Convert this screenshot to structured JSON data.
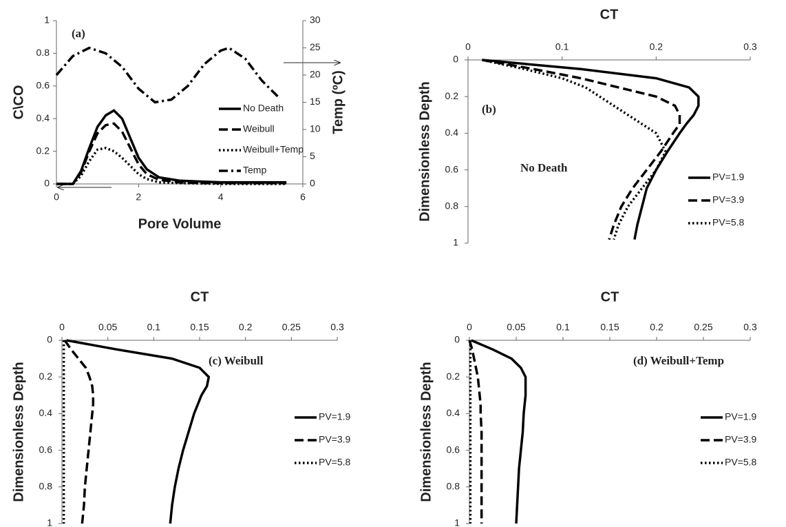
{
  "chart_data": [
    {
      "type": "line",
      "x_label": "Pore Volume",
      "y_label": "C\\CO",
      "y2_label": "Temp (ºC)",
      "annotations": [
        "(a)"
      ],
      "xlim": [
        0,
        6
      ],
      "xticks": [
        0,
        2,
        4,
        6
      ],
      "ylim": [
        0,
        1
      ],
      "yticks": [
        0,
        0.2,
        0.4,
        0.6,
        0.8,
        1
      ],
      "y2lim": [
        0,
        30
      ],
      "y2ticks": [
        0,
        5,
        10,
        15,
        20,
        25,
        30
      ],
      "series": [
        {
          "name": "No Death",
          "color": "#000000",
          "style": "solid",
          "x": [
            0,
            0.4,
            0.6,
            0.8,
            1,
            1.2,
            1.4,
            1.6,
            1.8,
            2,
            2.2,
            2.5,
            3,
            3.5,
            4,
            4.5,
            5,
            5.6
          ],
          "values": [
            0,
            0,
            0.08,
            0.22,
            0.35,
            0.42,
            0.45,
            0.4,
            0.28,
            0.16,
            0.09,
            0.04,
            0.02,
            0.015,
            0.01,
            0.01,
            0.01,
            0.01
          ]
        },
        {
          "name": "Weibull",
          "color": "#000000",
          "style": "dashed",
          "x": [
            0,
            0.4,
            0.6,
            0.8,
            1,
            1.2,
            1.4,
            1.6,
            1.8,
            2,
            2.2,
            2.5,
            3,
            3.5,
            4,
            4.5,
            5,
            5.6
          ],
          "values": [
            0,
            0,
            0.07,
            0.2,
            0.31,
            0.36,
            0.37,
            0.32,
            0.22,
            0.12,
            0.06,
            0.025,
            0.01,
            0.005,
            0.005,
            0.005,
            0.005,
            0.005
          ]
        },
        {
          "name": "Weibull+Temp",
          "color": "#000000",
          "style": "dotted",
          "x": [
            0,
            0.4,
            0.6,
            0.8,
            1,
            1.2,
            1.4,
            1.6,
            1.8,
            2,
            2.2,
            2.5,
            3,
            3.5,
            4,
            4.5,
            5,
            5.6
          ],
          "values": [
            0,
            0,
            0.05,
            0.14,
            0.21,
            0.22,
            0.2,
            0.16,
            0.11,
            0.06,
            0.03,
            0.01,
            0.005,
            0.003,
            0,
            0,
            0,
            0
          ]
        },
        {
          "name": "Temp",
          "color": "#000000",
          "style": "dashdot",
          "axis": "y2",
          "x": [
            0,
            0.4,
            0.8,
            1.2,
            1.6,
            2,
            2.4,
            2.8,
            3.2,
            3.6,
            4,
            4.2,
            4.6,
            5,
            5.4
          ],
          "values": [
            20,
            23.5,
            25,
            24,
            21.5,
            17.5,
            15,
            15.5,
            18,
            22,
            24.5,
            25,
            23,
            19,
            16
          ]
        }
      ]
    },
    {
      "type": "depth-profile",
      "x_label": "CT",
      "y_label": "Dimensionless Depth",
      "annotations": [
        "(b)",
        "No Death"
      ],
      "xaxis_position": "top",
      "xlim": [
        0,
        0.3
      ],
      "xticks": [
        0,
        0.1,
        0.2,
        0.3
      ],
      "ylim": [
        1,
        0
      ],
      "yticks": [
        0,
        0.2,
        0.4,
        0.6,
        0.8,
        1
      ],
      "depths": [
        0,
        0.05,
        0.1,
        0.15,
        0.2,
        0.25,
        0.3,
        0.35,
        0.4,
        0.5,
        0.6,
        0.7,
        0.8,
        0.9,
        0.98
      ],
      "series": [
        {
          "name": "PV=1.9",
          "color": "#000000",
          "style": "solid",
          "values": [
            0.015,
            0.12,
            0.2,
            0.235,
            0.245,
            0.245,
            0.24,
            0.232,
            0.225,
            0.212,
            0.2,
            0.19,
            0.185,
            0.18,
            0.177
          ]
        },
        {
          "name": "PV=3.9",
          "color": "#000000",
          "style": "dashed",
          "values": [
            0.015,
            0.07,
            0.12,
            0.16,
            0.2,
            0.22,
            0.225,
            0.225,
            0.218,
            0.205,
            0.19,
            0.175,
            0.163,
            0.155,
            0.15
          ]
        },
        {
          "name": "PV=5.8",
          "color": "#000000",
          "style": "dotted",
          "values": [
            0.015,
            0.06,
            0.1,
            0.125,
            0.14,
            0.155,
            0.17,
            0.185,
            0.2,
            0.21,
            0.2,
            0.185,
            0.17,
            0.16,
            0.155
          ]
        }
      ]
    },
    {
      "type": "depth-profile",
      "x_label": "CT",
      "y_label": "Dimensionless Depth",
      "annotations": [
        "(c) Weibull"
      ],
      "xaxis_position": "top",
      "xlim": [
        0,
        0.3
      ],
      "xticks": [
        0,
        0.05,
        0.1,
        0.15,
        0.2,
        0.25,
        0.3
      ],
      "ylim": [
        1,
        0
      ],
      "yticks": [
        0,
        0.2,
        0.4,
        0.6,
        0.8,
        1
      ],
      "depths": [
        0,
        0.05,
        0.1,
        0.15,
        0.2,
        0.25,
        0.3,
        0.35,
        0.4,
        0.5,
        0.6,
        0.7,
        0.8,
        0.9,
        1
      ],
      "series": [
        {
          "name": "PV=1.9",
          "color": "#000000",
          "style": "solid",
          "values": [
            0.005,
            0.06,
            0.12,
            0.15,
            0.16,
            0.158,
            0.152,
            0.148,
            0.144,
            0.138,
            0.132,
            0.127,
            0.123,
            0.12,
            0.118
          ]
        },
        {
          "name": "PV=3.9",
          "color": "#000000",
          "style": "dashed",
          "values": [
            0.003,
            0.01,
            0.018,
            0.026,
            0.03,
            0.033,
            0.034,
            0.034,
            0.033,
            0.031,
            0.029,
            0.027,
            0.025,
            0.024,
            0.022
          ]
        },
        {
          "name": "PV=5.8",
          "color": "#000000",
          "style": "dotted",
          "values": [
            0.002,
            0.002,
            0.002,
            0.002,
            0.002,
            0.002,
            0.002,
            0.002,
            0.002,
            0.002,
            0.002,
            0.002,
            0.002,
            0.002,
            0.002
          ]
        }
      ]
    },
    {
      "type": "depth-profile",
      "x_label": "CT",
      "y_label": "Dimensionless Depth",
      "annotations": [
        "(d) Weibull+Temp"
      ],
      "xaxis_position": "top",
      "xlim": [
        0,
        0.3
      ],
      "xticks": [
        0,
        0.05,
        0.1,
        0.15,
        0.2,
        0.25,
        0.3
      ],
      "ylim": [
        1,
        0
      ],
      "yticks": [
        0,
        0.2,
        0.4,
        0.6,
        0.8,
        1
      ],
      "depths": [
        0,
        0.05,
        0.1,
        0.15,
        0.2,
        0.25,
        0.3,
        0.35,
        0.4,
        0.5,
        0.6,
        0.7,
        0.8,
        0.9,
        1
      ],
      "series": [
        {
          "name": "PV=1.9",
          "color": "#000000",
          "style": "solid",
          "values": [
            0.002,
            0.025,
            0.045,
            0.055,
            0.06,
            0.06,
            0.06,
            0.059,
            0.058,
            0.057,
            0.055,
            0.053,
            0.052,
            0.051,
            0.05
          ]
        },
        {
          "name": "PV=3.9",
          "color": "#000000",
          "style": "dashed",
          "values": [
            0,
            0.003,
            0.005,
            0.007,
            0.009,
            0.01,
            0.011,
            0.012,
            0.012,
            0.013,
            0.013,
            0.013,
            0.013,
            0.013,
            0.013
          ]
        },
        {
          "name": "PV=5.8",
          "color": "#000000",
          "style": "dotted",
          "values": [
            0.001,
            0.001,
            0.001,
            0.001,
            0.001,
            0.001,
            0.001,
            0.001,
            0.001,
            0.001,
            0.001,
            0.001,
            0.001,
            0.001,
            0.001
          ]
        }
      ]
    }
  ]
}
